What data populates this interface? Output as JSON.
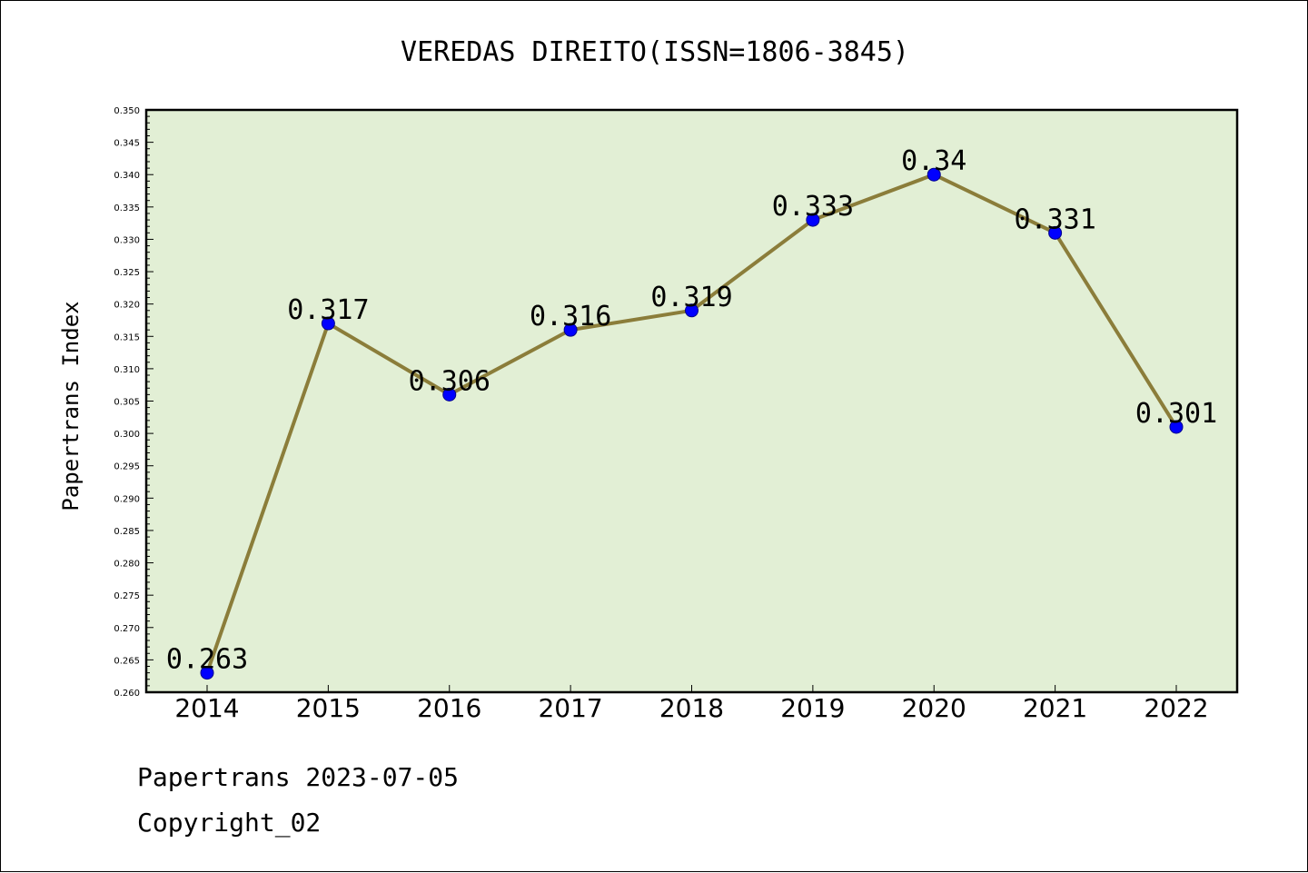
{
  "chart_data": {
    "type": "line",
    "title": "VEREDAS DIREITO(ISSN=1806-3845)",
    "xlabel": "",
    "ylabel": "Papertrans Index",
    "categories": [
      "2014",
      "2015",
      "2016",
      "2017",
      "2018",
      "2019",
      "2020",
      "2021",
      "2022"
    ],
    "series": [
      {
        "values": [
          0.263,
          0.317,
          0.306,
          0.316,
          0.319,
          0.333,
          0.34,
          0.331,
          0.301
        ],
        "data_labels": [
          "0.263",
          "0.317",
          "0.306",
          "0.316",
          "0.319",
          "0.333",
          "0.34",
          "0.331",
          "0.301"
        ]
      }
    ],
    "ylim": [
      0.26,
      0.35
    ],
    "yticks": [
      "0.260",
      "0.265",
      "0.270",
      "0.275",
      "0.280",
      "0.285",
      "0.290",
      "0.295",
      "0.300",
      "0.305",
      "0.310",
      "0.315",
      "0.320",
      "0.325",
      "0.330",
      "0.335",
      "0.340",
      "0.345",
      "0.350"
    ],
    "grid": false,
    "legend": "none",
    "colors": {
      "plot_background": "#e2efd5",
      "line": "#8b7d3a",
      "marker": "#0000ff",
      "marker_edge": "#00008b"
    }
  },
  "footer": {
    "line1": "Papertrans 2023-07-05",
    "line2": "Copyright_02"
  }
}
